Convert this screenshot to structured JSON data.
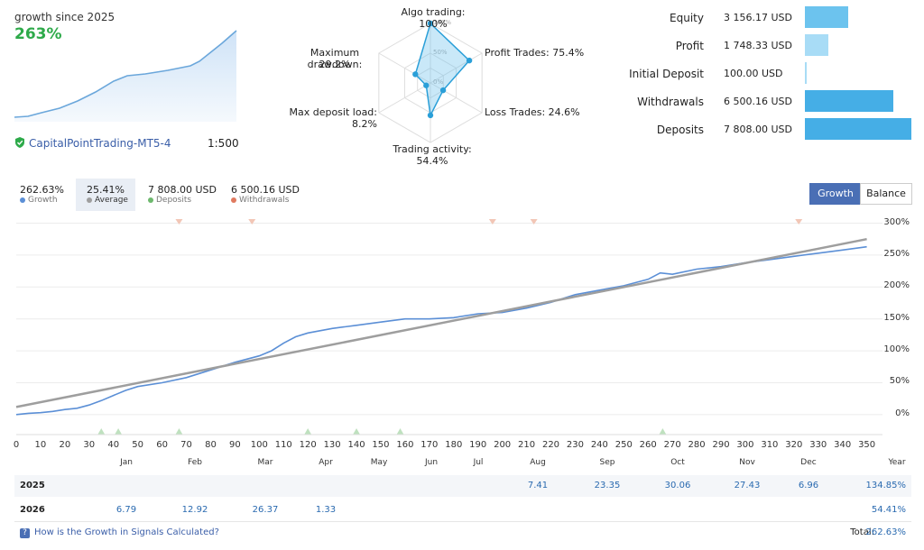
{
  "summary": {
    "growth_label": "growth since 2025",
    "growth_value": "263%",
    "account_name": "CapitalPointTrading-MT5-4",
    "leverage": "1:500"
  },
  "radar": {
    "labels": {
      "algo": "Algo trading: 100%",
      "profit_trades": "Profit Trades: 75.4%",
      "loss_trades": "Loss Trades: 24.6%",
      "activity": "Trading activity: 54.4%",
      "deposit_load": "Max deposit load: 8.2%",
      "drawdown_title": "Maximum drawdown:",
      "drawdown_value": "29.2%"
    },
    "ring_labels": {
      "r100": "100%",
      "r50": "50%",
      "r0": "0%"
    },
    "values": {
      "algo": 1.0,
      "profit_trades": 0.754,
      "loss_trades": 0.246,
      "activity": 0.544,
      "deposit_load": 0.082,
      "drawdown": 0.292
    }
  },
  "stats": [
    {
      "label": "Equity",
      "value": "3 156.17 USD",
      "amount": 3156.17,
      "color": "#6cc3ee"
    },
    {
      "label": "Profit",
      "value": "1 748.33 USD",
      "amount": 1748.33,
      "color": "#a8dcf6"
    },
    {
      "label": "Initial Deposit",
      "value": "100.00 USD",
      "amount": 100.0,
      "color": "#a8dcf6"
    },
    {
      "label": "Withdrawals",
      "value": "6 500.16 USD",
      "amount": 6500.16,
      "color": "#45aee6"
    },
    {
      "label": "Deposits",
      "value": "7 808.00 USD",
      "amount": 7808.0,
      "color": "#45aee6"
    }
  ],
  "legend": {
    "growth_value": "262.63%",
    "growth_label": "Growth",
    "average_value": "25.41%",
    "average_label": "Average",
    "deposits_value": "7 808.00 USD",
    "deposits_label": "Deposits",
    "withdrawals_value": "6 500.16 USD",
    "withdrawals_label": "Withdrawals"
  },
  "tabs": {
    "growth": "Growth",
    "balance": "Balance"
  },
  "colors": {
    "growth": "#5b8fd6",
    "average": "#9e9e9e",
    "deposit": "#6db86d",
    "withdrawal": "#e6a08a",
    "accent": "#4a6fb5",
    "positive": "#2eaa4a"
  },
  "chart_data": {
    "type": "line",
    "x_ticks": [
      0,
      10,
      20,
      30,
      40,
      50,
      60,
      70,
      80,
      90,
      100,
      110,
      120,
      130,
      140,
      150,
      160,
      170,
      180,
      190,
      200,
      210,
      220,
      230,
      240,
      250,
      260,
      270,
      280,
      290,
      300,
      310,
      320,
      330,
      340,
      350
    ],
    "y_ticks": [
      "300%",
      "250%",
      "200%",
      "150%",
      "100%",
      "50%",
      "0%"
    ],
    "y_tick_values": [
      300,
      250,
      200,
      150,
      100,
      50,
      0
    ],
    "months": [
      "Jan",
      "Feb",
      "Mar",
      "Apr",
      "May",
      "Jun",
      "Jul",
      "Aug",
      "Sep",
      "Oct",
      "Nov",
      "Dec",
      "Year"
    ],
    "xlim": [
      0,
      352
    ],
    "ylim": [
      -20,
      305
    ],
    "series": [
      {
        "name": "Growth",
        "x": [
          0,
          5,
          10,
          15,
          20,
          25,
          30,
          35,
          40,
          45,
          50,
          60,
          70,
          80,
          90,
          100,
          105,
          110,
          115,
          120,
          130,
          140,
          150,
          160,
          170,
          180,
          190,
          200,
          210,
          220,
          230,
          240,
          250,
          260,
          265,
          270,
          280,
          290,
          300,
          310,
          320,
          330,
          340,
          350
        ],
        "y": [
          0,
          2,
          3,
          5,
          8,
          10,
          15,
          22,
          30,
          38,
          44,
          50,
          58,
          70,
          82,
          92,
          100,
          112,
          122,
          128,
          135,
          140,
          145,
          150,
          150,
          152,
          158,
          160,
          167,
          176,
          188,
          195,
          202,
          212,
          222,
          220,
          228,
          232,
          238,
          243,
          248,
          253,
          258,
          263
        ]
      },
      {
        "name": "Average",
        "x": [
          0,
          350
        ],
        "y": [
          12,
          275
        ]
      }
    ],
    "deposit_markers_x": [
      35,
      42,
      67,
      120,
      140,
      158,
      266
    ],
    "withdrawal_markers_x": [
      67,
      97,
      196,
      213,
      322
    ]
  },
  "table": {
    "rows": [
      {
        "year": "2025",
        "cells": [
          "",
          "",
          "",
          "",
          "",
          "",
          "",
          "7.41",
          "23.35",
          "30.06",
          "27.43",
          "6.96"
        ],
        "total": "134.85%"
      },
      {
        "year": "2026",
        "cells": [
          "6.79",
          "12.92",
          "26.37",
          "1.33",
          "",
          "",
          "",
          "",
          "",
          "",
          "",
          ""
        ],
        "total": "54.41%"
      }
    ]
  },
  "footer": {
    "help_link": "How is the Growth in Signals Calculated?",
    "total_label": "Total:",
    "total_value": "262.63%"
  }
}
